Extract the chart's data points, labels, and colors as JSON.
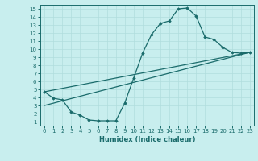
{
  "xlabel": "Humidex (Indice chaleur)",
  "xlim": [
    -0.5,
    23.5
  ],
  "ylim": [
    0.5,
    15.5
  ],
  "xticks": [
    0,
    1,
    2,
    3,
    4,
    5,
    6,
    7,
    8,
    9,
    10,
    11,
    12,
    13,
    14,
    15,
    16,
    17,
    18,
    19,
    20,
    21,
    22,
    23
  ],
  "yticks": [
    1,
    2,
    3,
    4,
    5,
    6,
    7,
    8,
    9,
    10,
    11,
    12,
    13,
    14,
    15
  ],
  "bg_color": "#c8eeee",
  "grid_color": "#b0dddd",
  "line_color": "#1a6b6b",
  "line1_x": [
    0,
    1,
    2,
    3,
    4,
    5,
    6,
    7,
    8,
    9,
    10,
    11,
    12,
    13,
    14,
    15,
    16,
    17,
    18,
    19,
    20,
    21,
    22,
    23
  ],
  "line1_y": [
    4.7,
    3.9,
    3.7,
    2.2,
    1.8,
    1.2,
    1.1,
    1.1,
    1.1,
    3.3,
    6.4,
    9.5,
    11.8,
    13.2,
    13.5,
    15.0,
    15.1,
    14.1,
    11.5,
    11.2,
    10.2,
    9.6,
    9.5,
    9.6
  ],
  "line2_x": [
    0,
    23
  ],
  "line2_y": [
    4.7,
    9.6
  ],
  "line3_x": [
    0,
    23
  ],
  "line3_y": [
    3.0,
    9.6
  ]
}
